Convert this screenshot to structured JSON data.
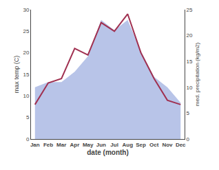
{
  "chart_data": {
    "type": "line",
    "categories": [
      "Jan",
      "Feb",
      "Mar",
      "Apr",
      "May",
      "Jun",
      "Jul",
      "Aug",
      "Sep",
      "Oct",
      "Nov",
      "Dec"
    ],
    "series": [
      {
        "type": "area",
        "axis": "y2",
        "color": "#b8c4e8",
        "values": [
          10,
          11,
          11,
          13,
          16,
          23,
          21,
          23,
          17,
          12,
          10,
          7
        ]
      },
      {
        "type": "line",
        "color": "#a03050",
        "values": [
          8.0,
          13.0,
          14.0,
          21.0,
          19.5,
          27.0,
          25.0,
          29.0,
          20.0,
          14.0,
          9.0,
          8.0
        ]
      }
    ],
    "xlabel": "date (month)",
    "ylabel": "max temp (C)",
    "y2label": "med. precipitation (kg/m2)",
    "ylim": [
      0,
      30
    ],
    "yticks": [
      0,
      5,
      10,
      15,
      20,
      25,
      30
    ],
    "y2lim": [
      0,
      25
    ],
    "y2ticks": [
      0,
      5,
      10,
      15,
      20,
      25
    ],
    "grid": false
  }
}
